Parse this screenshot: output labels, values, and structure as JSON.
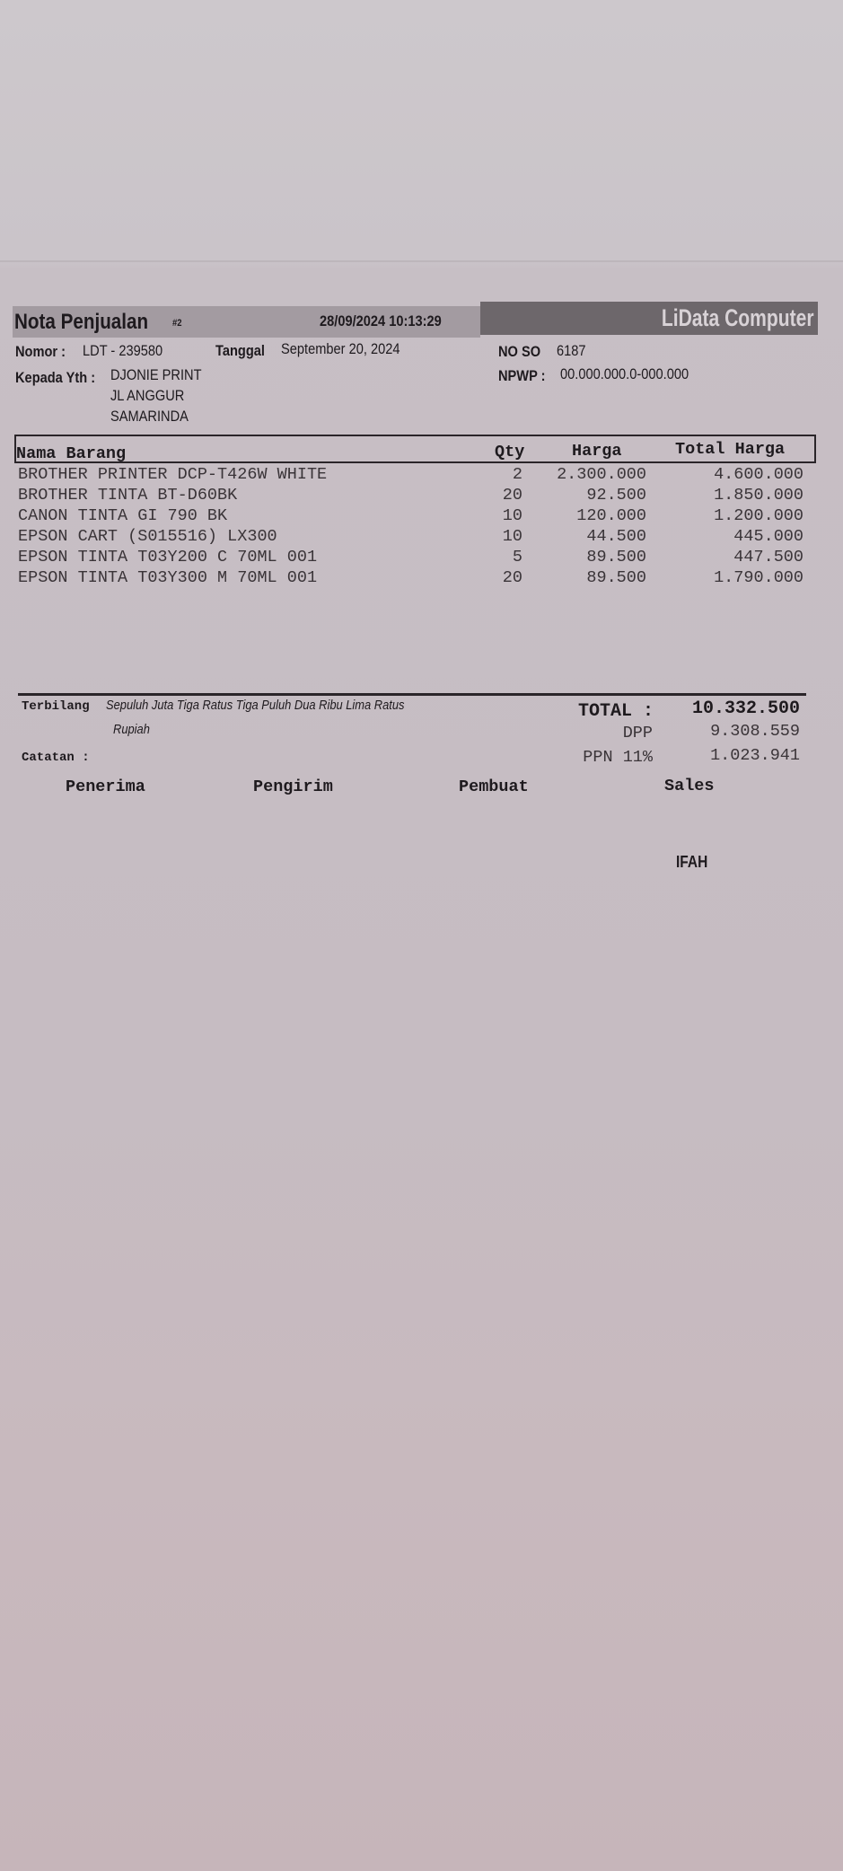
{
  "header": {
    "title": "Nota Penjualan",
    "copy": "#2",
    "printed_at": "28/09/2024 10:13:29",
    "company": "LiData Computer"
  },
  "info": {
    "nomor_label": "Nomor :",
    "nomor": "LDT  - 239580",
    "tanggal_label": "Tanggal",
    "tanggal": "September 20, 2024",
    "noso_label": "NO SO",
    "noso": "6187",
    "kepada_label": "Kepada Yth :",
    "kepada": [
      "DJONIE PRINT",
      "JL ANGGUR",
      "SAMARINDA"
    ],
    "npwp_label": "NPWP :",
    "npwp": "00.000.000.0-000.000"
  },
  "table": {
    "headers": {
      "name": "Nama Barang",
      "qty": "Qty",
      "price": "Harga",
      "total": "Total Harga"
    },
    "rows": [
      {
        "name": "BROTHER PRINTER DCP-T426W  WHITE",
        "qty": "2",
        "price": "2.300.000",
        "total": "4.600.000"
      },
      {
        "name": "BROTHER TINTA BT-D60BK",
        "qty": "20",
        "price": "92.500",
        "total": "1.850.000"
      },
      {
        "name": "CANON TINTA GI 790 BK",
        "qty": "10",
        "price": "120.000",
        "total": "1.200.000"
      },
      {
        "name": "EPSON CART (S015516) LX300",
        "qty": "10",
        "price": "44.500",
        "total": "445.000"
      },
      {
        "name": "EPSON TINTA T03Y200 C 70ML 001",
        "qty": "5",
        "price": "89.500",
        "total": "447.500"
      },
      {
        "name": "EPSON TINTA T03Y300 M 70ML 001",
        "qty": "20",
        "price": "89.500",
        "total": "1.790.000"
      }
    ]
  },
  "footer": {
    "terbilang_label": "Terbilang",
    "terbilang_1": "Sepuluh Juta Tiga Ratus Tiga Puluh Dua Ribu Lima Ratus",
    "terbilang_2": "Rupiah",
    "catatan_label": "Catatan :",
    "total_label": "TOTAL :",
    "total": "10.332.500",
    "dpp_label": "DPP",
    "dpp": "9.308.559",
    "ppn_label": "PPN 11%",
    "ppn": "1.023.941"
  },
  "signatures": {
    "penerima": "Penerima",
    "pengirim": "Pengirim",
    "pembuat": "Pembuat",
    "sales": "Sales",
    "sales_name": "IFAH"
  }
}
